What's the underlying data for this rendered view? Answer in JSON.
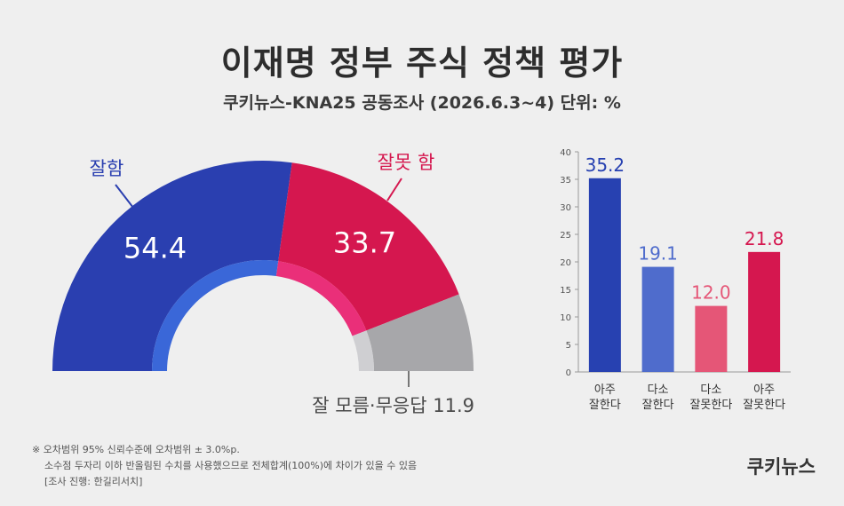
{
  "title": "이재명 정부 주식 정책 평가",
  "subtitle": "쿠키뉴스-KNA25 공동조사 (2026.6.3~4) 단위: %",
  "footnote": {
    "line1": "※ 오차범위 95% 신뢰수준에 오차범위 ± 3.0%p.",
    "line2": "소수점 두자리 이하 반올림된 수치를 사용했으므로 전체합계(100%)에 차이가 있을 수 있음",
    "line3": "[조사 진행: 한길리서치]"
  },
  "brand": "쿠키뉴스",
  "colors": {
    "good": "#2a3fb0",
    "bad": "#d5174f",
    "neutral": "#a7a7aa",
    "good_inner": "#3a67d8",
    "bad_inner": "#ea2f79",
    "neutral_inner": "#cfcfd2",
    "bar_very_good": "#2741b1",
    "bar_somewhat_good": "#4f6ccc",
    "bar_somewhat_bad": "#e55677",
    "bar_very_bad": "#d5174f"
  },
  "chart_data": [
    {
      "type": "pie",
      "style": "half-donut",
      "labels": [
        "잘함",
        "잘못 함",
        "잘 모름·무응답"
      ],
      "values": [
        54.4,
        33.7,
        11.9
      ],
      "value_labels": [
        "54.4",
        "33.7",
        "11.9"
      ],
      "neutral_label": "잘 모름·무응답 11.9"
    },
    {
      "type": "bar",
      "categories": [
        [
          "아주",
          "잘한다"
        ],
        [
          "다소",
          "잘한다"
        ],
        [
          "다소",
          "잘못한다"
        ],
        [
          "아주",
          "잘못한다"
        ]
      ],
      "values": [
        35.2,
        19.1,
        12.0,
        21.8
      ],
      "value_labels": [
        "35.2",
        "19.1",
        "12.0",
        "21.8"
      ],
      "ylim": [
        0,
        40
      ],
      "yticks": [
        "0",
        "5",
        "10",
        "15",
        "20",
        "25",
        "30",
        "35",
        "40"
      ],
      "grid": false
    }
  ]
}
